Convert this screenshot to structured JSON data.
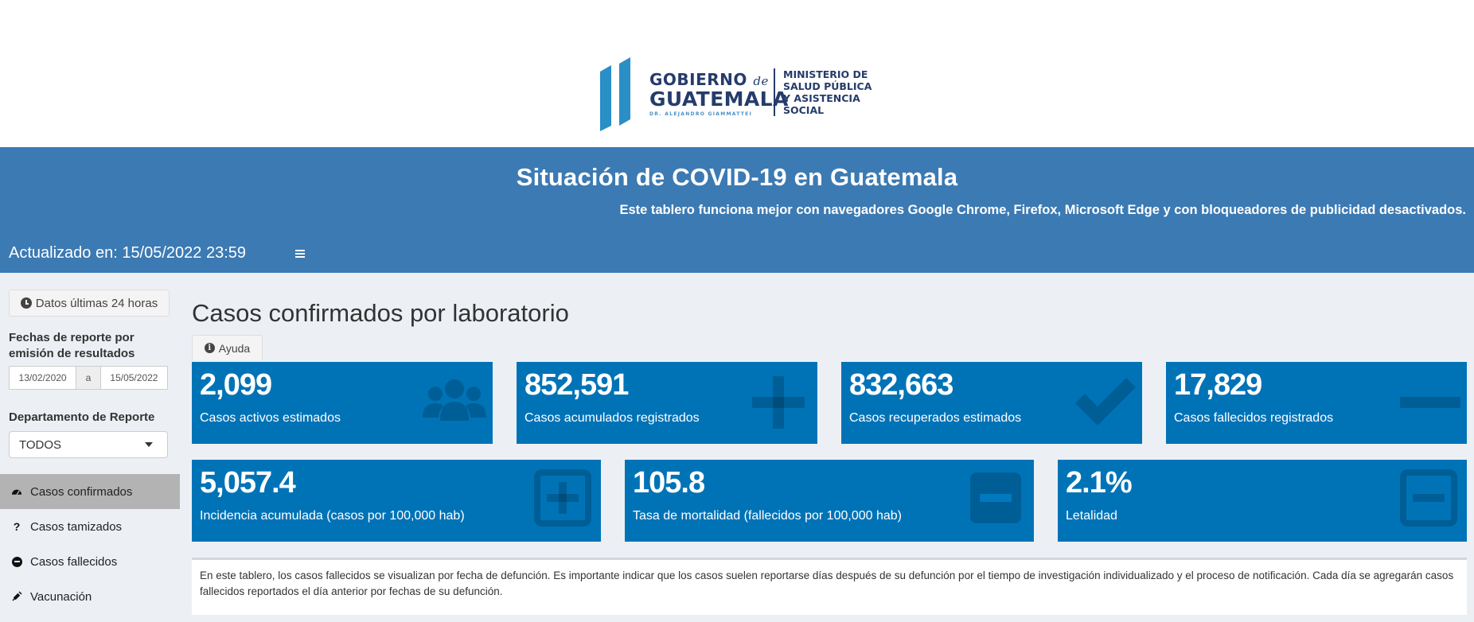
{
  "logo": {
    "gobierno": "GOBIERNO",
    "de": "de",
    "guatemala": "GUATEMALA",
    "subtitle": "DR. ALEJANDRO GIAMMATTEI",
    "ministerio_lines": [
      "MINISTERIO DE",
      "SALUD PÚBLICA",
      "Y ASISTENCIA",
      "SOCIAL"
    ]
  },
  "header": {
    "title": "Situación de COVID-19 en Guatemala",
    "subtitle": "Este tablero funciona mejor con navegadores Google Chrome, Firefox, Microsoft Edge y con bloqueadores de publicidad desactivados.",
    "updated": "Actualizado en: 15/05/2022 23:59",
    "menu_icon": "hamburger-icon"
  },
  "sidebar": {
    "btn_24h": "Datos últimas 24 horas",
    "fechas_label": "Fechas de reporte por emisión de resultados",
    "date_from": "13/02/2020",
    "date_sep": "a",
    "date_to": "15/05/2022",
    "depto_label": "Departamento de Reporte",
    "depto_value": "TODOS",
    "menu": [
      {
        "label": "Casos confirmados",
        "icon": "dashboard-icon",
        "active": true
      },
      {
        "label": "Casos tamizados",
        "icon": "question-icon",
        "active": false
      },
      {
        "label": "Casos fallecidos",
        "icon": "minus-circle-icon",
        "active": false
      },
      {
        "label": "Vacunación",
        "icon": "syringe-icon",
        "active": false
      }
    ]
  },
  "main": {
    "title": "Casos confirmados por laboratorio",
    "ayuda": "Ayuda",
    "boxes_row1": [
      {
        "value": "2,099",
        "label": "Casos activos estimados",
        "icon": "users-icon"
      },
      {
        "value": "852,591",
        "label": "Casos acumulados registrados",
        "icon": "plus-icon"
      },
      {
        "value": "832,663",
        "label": "Casos recuperados estimados",
        "icon": "check-icon"
      },
      {
        "value": "17,829",
        "label": "Casos fallecidos registrados",
        "icon": "minus-icon"
      }
    ],
    "boxes_row2": [
      {
        "value": "5,057.4",
        "label": "Incidencia acumulada (casos por 100,000 hab)",
        "icon": "plus-square-icon"
      },
      {
        "value": "105.8",
        "label": "Tasa de mortalidad (fallecidos por 100,000 hab)",
        "icon": "minus-square-icon"
      },
      {
        "value": "2.1%",
        "label": "Letalidad",
        "icon": "minus-square-outline-icon"
      }
    ],
    "note": "En este tablero, los casos fallecidos se visualizan por fecha de defunción. Es importante indicar que los casos suelen reportarse días después de su defunción por el tiempo de investigación individualizado y el proceso de notificación. Cada día se agregarán casos fallecidos reportados el día anterior por fechas de su defunción."
  },
  "colors": {
    "header_blue": "#3c7ab3",
    "box_blue": "#0073b7",
    "sidebar_bg": "#ecf0f5",
    "active_menu": "#b3b3b3"
  }
}
